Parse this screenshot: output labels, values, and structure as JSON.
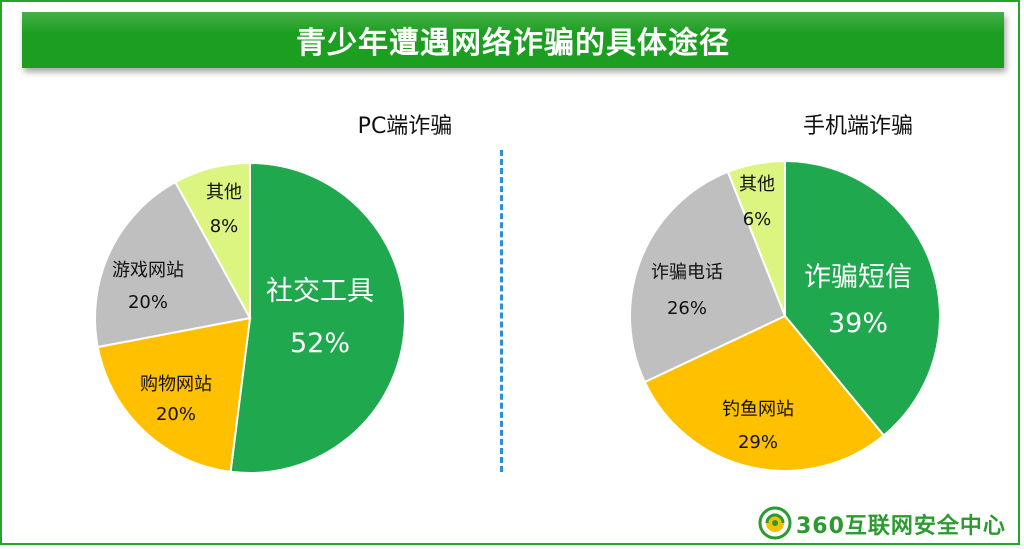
{
  "banner": {
    "title": "青少年遭遇网络诈骗的具体途径"
  },
  "footer": {
    "brand": "360互联网安全中心"
  },
  "colors": {
    "green": "#1fa84d",
    "orange": "#ffc000",
    "gray": "#bfbfbf",
    "lightgreen": "#dcf580",
    "brand_green": "#1c9e20",
    "divider_blue": "#2a8fd6"
  },
  "chart_data": [
    {
      "type": "pie",
      "title": "PC端诈骗",
      "slices": [
        {
          "label": "社交工具",
          "value": 52,
          "value_label": "52%",
          "color": "#1fa84d"
        },
        {
          "label": "购物网站",
          "value": 20,
          "value_label": "20%",
          "color": "#ffc000"
        },
        {
          "label": "游戏网站",
          "value": 20,
          "value_label": "20%",
          "color": "#bfbfbf"
        },
        {
          "label": "其他",
          "value": 8,
          "value_label": "8%",
          "color": "#dcf580"
        }
      ]
    },
    {
      "type": "pie",
      "title": "手机端诈骗",
      "slices": [
        {
          "label": "诈骗短信",
          "value": 39,
          "value_label": "39%",
          "color": "#1fa84d"
        },
        {
          "label": "钓鱼网站",
          "value": 29,
          "value_label": "29%",
          "color": "#ffc000"
        },
        {
          "label": "诈骗电话",
          "value": 26,
          "value_label": "26%",
          "color": "#bfbfbf"
        },
        {
          "label": "其他",
          "value": 6,
          "value_label": "6%",
          "color": "#dcf580"
        }
      ]
    }
  ]
}
